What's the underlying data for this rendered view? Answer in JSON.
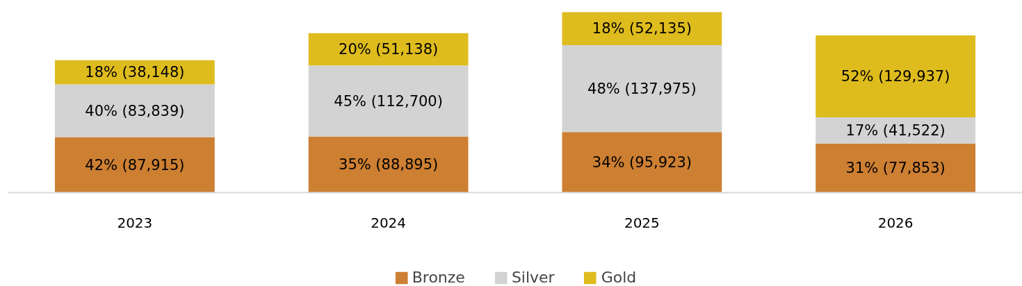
{
  "chart_data": {
    "type": "bar",
    "stacked": true,
    "categories": [
      "2023",
      "2024",
      "2025",
      "2026"
    ],
    "series": [
      {
        "name": "Bronze",
        "color": "#cd7f32",
        "values": [
          87915,
          88895,
          95923,
          77853
        ],
        "value_labels": [
          "42% (87,915)",
          "35% (88,895)",
          "34% (95,923)",
          "31% (77,853)"
        ]
      },
      {
        "name": "Silver",
        "color": "#d3d3d3",
        "values": [
          83839,
          112700,
          137975,
          41522
        ],
        "value_labels": [
          "40% (83,839)",
          "45% (112,700)",
          "48% (137,975)",
          "17% (41,522)"
        ]
      },
      {
        "name": "Gold",
        "color": "#dfbc1e",
        "values": [
          38148,
          51138,
          52135,
          129937
        ],
        "value_labels": [
          "18% (38,148)",
          "20% (51,138)",
          "18% (52,135)",
          "52% (129,937)"
        ]
      }
    ],
    "legend": "bottom"
  }
}
